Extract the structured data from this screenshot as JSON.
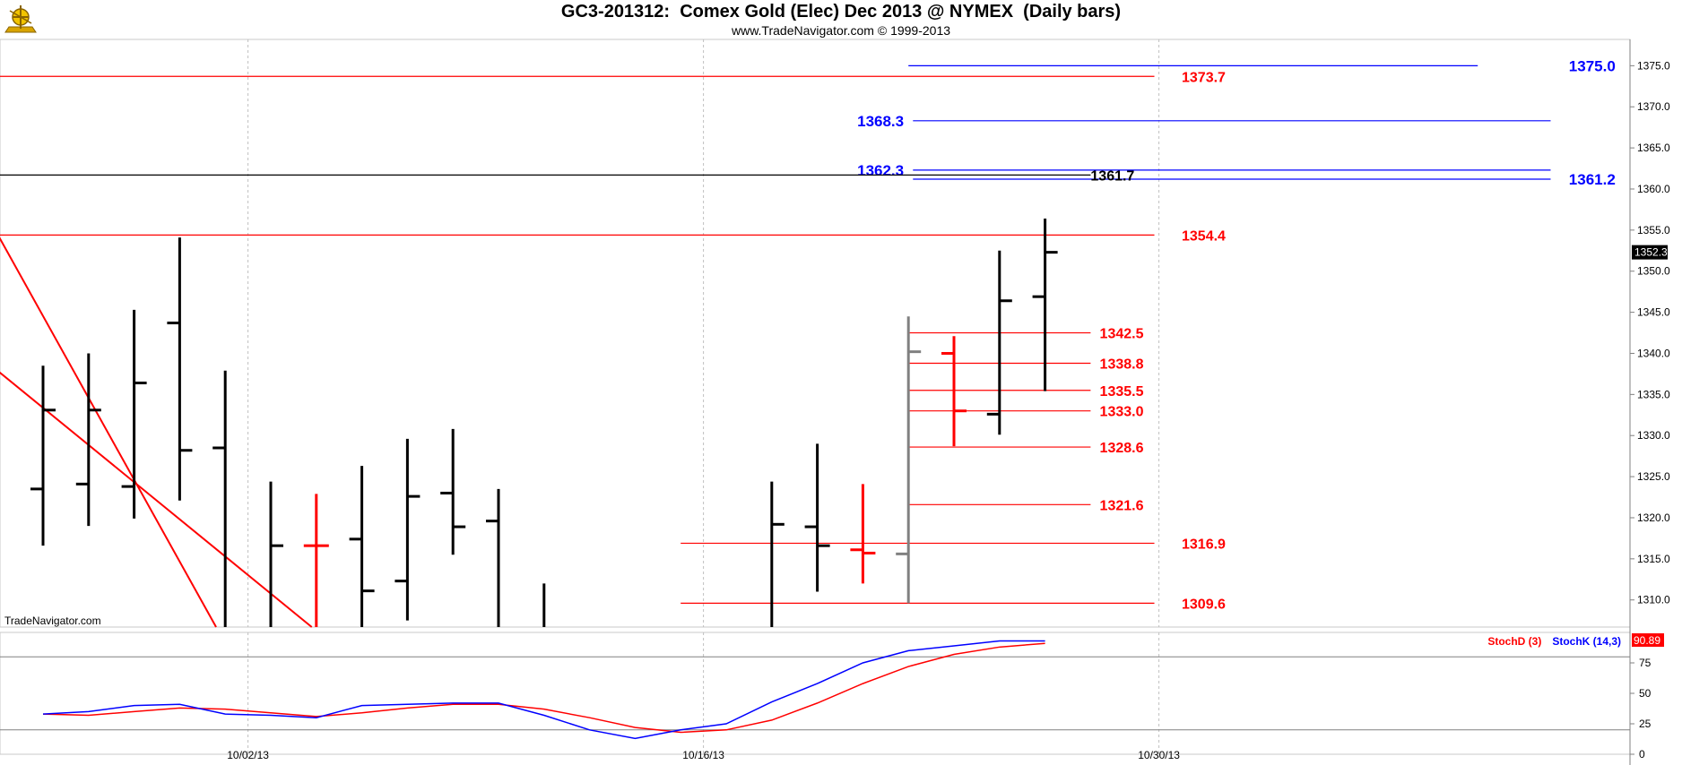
{
  "header": {
    "title": "GC3-201312:  Comex Gold (Elec) Dec 2013 @ NYMEX  (Daily bars)",
    "subtitle": "www.TradeNavigator.com © 1999-2013",
    "watermark": "TradeNavigator.com"
  },
  "colors": {
    "bar": "#000000",
    "bar_alt": "#808080",
    "bar_red": "#ff0000",
    "level_red": "#ff0000",
    "level_blue": "#0000ff",
    "stochD": "#ff0000",
    "stochK": "#0000ff"
  },
  "chart_data": {
    "type": "bar",
    "price_axis": {
      "ylim": [
        1306.7,
        1378.2
      ],
      "ticks": [
        "1310.0",
        "1315.0",
        "1320.0",
        "1325.0",
        "1330.0",
        "1335.0",
        "1340.0",
        "1345.0",
        "1350.0",
        "1355.0",
        "1360.0",
        "1365.0",
        "1370.0",
        "1375.0"
      ]
    },
    "last_price": "1352.3",
    "x_ticks": [
      {
        "i": 4.5,
        "label": "10/02/13"
      },
      {
        "i": 14.5,
        "label": "10/16/13"
      },
      {
        "i": 24.5,
        "label": "10/30/13"
      }
    ],
    "ohlc": [
      {
        "i": 0,
        "h": 1338.5,
        "l": 1316.6,
        "o": 1323.5,
        "c": 1333.1,
        "color": "black"
      },
      {
        "i": 1,
        "h": 1340.0,
        "l": 1319.0,
        "o": 1324.1,
        "c": 1333.1,
        "color": "black"
      },
      {
        "i": 2,
        "h": 1345.3,
        "l": 1319.9,
        "o": 1323.8,
        "c": 1336.4,
        "color": "black"
      },
      {
        "i": 3,
        "h": 1354.1,
        "l": 1322.1,
        "o": 1343.7,
        "c": 1328.2,
        "color": "black"
      },
      {
        "i": 4,
        "h": 1337.9,
        "l": 1306.7,
        "o": 1328.5,
        "c": null,
        "color": "black"
      },
      {
        "i": 5,
        "h": 1324.4,
        "l": 1306.7,
        "o": null,
        "c": 1316.6,
        "color": "black"
      },
      {
        "i": 6,
        "h": 1322.9,
        "l": 1306.7,
        "o": 1316.6,
        "c": 1316.6,
        "color": "red"
      },
      {
        "i": 7,
        "h": 1326.3,
        "l": 1306.7,
        "o": 1317.4,
        "c": 1311.1,
        "color": "black"
      },
      {
        "i": 8,
        "h": 1329.6,
        "l": 1307.5,
        "o": 1312.3,
        "c": 1322.6,
        "color": "black"
      },
      {
        "i": 9,
        "h": 1330.8,
        "l": 1315.5,
        "o": 1323.0,
        "c": 1318.9,
        "color": "black"
      },
      {
        "i": 10,
        "h": 1323.5,
        "l": 1306.7,
        "o": 1319.6,
        "c": null,
        "color": "black"
      },
      {
        "i": 11,
        "h": 1312.0,
        "l": 1306.7,
        "o": null,
        "c": null,
        "color": "black"
      },
      {
        "i": 16,
        "h": 1324.4,
        "l": 1306.7,
        "o": null,
        "c": 1319.2,
        "color": "black"
      },
      {
        "i": 17,
        "h": 1329.0,
        "l": 1311.0,
        "o": 1318.9,
        "c": 1316.6,
        "color": "black"
      },
      {
        "i": 18,
        "h": 1324.1,
        "l": 1312.0,
        "o": 1316.1,
        "c": 1315.7,
        "color": "red"
      },
      {
        "i": 19,
        "h": 1344.5,
        "l": 1309.6,
        "o": 1315.6,
        "c": 1340.2,
        "color": "gray"
      },
      {
        "i": 20,
        "h": 1342.1,
        "l": 1328.7,
        "o": 1340.0,
        "c": 1333.0,
        "color": "red"
      },
      {
        "i": 21,
        "h": 1352.5,
        "l": 1330.1,
        "o": 1332.6,
        "c": 1346.4,
        "color": "black"
      },
      {
        "i": 22,
        "h": 1356.4,
        "l": 1335.4,
        "o": 1346.9,
        "c": 1352.3,
        "color": "black"
      }
    ],
    "levels": [
      {
        "value": 1375.0,
        "label": "1375.0",
        "color": "blue",
        "x0": 19,
        "x1": 31.5,
        "label_at": 33.5,
        "anchor": "start",
        "size": 17
      },
      {
        "value": 1373.7,
        "label": "1373.7",
        "color": "red",
        "x0": -1,
        "x1": 24.4,
        "label_at": 25.0,
        "anchor": "start",
        "size": 16
      },
      {
        "value": 1368.3,
        "label": "1368.3",
        "color": "blue",
        "x0": 19.1,
        "x1": 33.1,
        "label_at": 18.9,
        "anchor": "end",
        "size": 17
      },
      {
        "value": 1362.3,
        "label": "1362.3",
        "color": "blue",
        "x0": 19.1,
        "x1": 33.1,
        "label_at": 18.9,
        "anchor": "end",
        "size": 17
      },
      {
        "value": 1361.2,
        "label": "1361.2",
        "color": "blue",
        "x0": 19.1,
        "x1": 33.1,
        "label_at": 33.5,
        "anchor": "start",
        "size": 17
      },
      {
        "value": 1361.7,
        "label": "1361.7",
        "color": "black",
        "x0": -1,
        "x1": 23.0,
        "label_at": 23.0,
        "anchor": "start",
        "size": 16
      },
      {
        "value": 1354.4,
        "label": "1354.4",
        "color": "red",
        "x0": -1,
        "x1": 24.4,
        "label_at": 25.0,
        "anchor": "start",
        "size": 16
      },
      {
        "value": 1342.5,
        "label": "1342.5",
        "color": "red",
        "x0": 19.0,
        "x1": 23.0,
        "label_at": 23.2,
        "anchor": "start",
        "size": 16
      },
      {
        "value": 1338.8,
        "label": "1338.8",
        "color": "red",
        "x0": 19.0,
        "x1": 23.0,
        "label_at": 23.2,
        "anchor": "start",
        "size": 16
      },
      {
        "value": 1335.5,
        "label": "1335.5",
        "color": "red",
        "x0": 19.0,
        "x1": 23.0,
        "label_at": 23.2,
        "anchor": "start",
        "size": 16
      },
      {
        "value": 1333.0,
        "label": "1333.0",
        "color": "red",
        "x0": 19.0,
        "x1": 23.0,
        "label_at": 23.2,
        "anchor": "start",
        "size": 16
      },
      {
        "value": 1328.6,
        "label": "1328.6",
        "color": "red",
        "x0": 19.0,
        "x1": 23.0,
        "label_at": 23.2,
        "anchor": "start",
        "size": 16
      },
      {
        "value": 1321.6,
        "label": "1321.6",
        "color": "red",
        "x0": 19.0,
        "x1": 23.0,
        "label_at": 23.2,
        "anchor": "start",
        "size": 16
      },
      {
        "value": 1316.9,
        "label": "1316.9",
        "color": "red",
        "x0": 14.0,
        "x1": 24.4,
        "label_at": 25.0,
        "anchor": "start",
        "size": 16
      },
      {
        "value": 1309.6,
        "label": "1309.6",
        "color": "red",
        "x0": 14.0,
        "x1": 24.4,
        "label_at": 25.0,
        "anchor": "start",
        "size": 16
      }
    ],
    "trendlines": [
      {
        "x0": -1,
        "y0": 1354.5,
        "x1": 3.8,
        "y1": 1306.7
      },
      {
        "x0": -1,
        "y0": 1337.9,
        "x1": 5.9,
        "y1": 1306.7
      }
    ],
    "stochastic": {
      "ylim": [
        0,
        100
      ],
      "ticks": [
        "0",
        "25",
        "50",
        "75"
      ],
      "levels": [
        20,
        80
      ],
      "last_value": "90.89",
      "legend": [
        {
          "name": "StochD (3)",
          "color": "red"
        },
        {
          "name": "StochK (14,3)",
          "color": "blue"
        }
      ],
      "K": [
        [
          0,
          33
        ],
        [
          1,
          35
        ],
        [
          2,
          40
        ],
        [
          3,
          41
        ],
        [
          4,
          33
        ],
        [
          5,
          32
        ],
        [
          6,
          30
        ],
        [
          7,
          40
        ],
        [
          8,
          41
        ],
        [
          9,
          42
        ],
        [
          10,
          42
        ],
        [
          11,
          32
        ],
        [
          12,
          20
        ],
        [
          13,
          13
        ],
        [
          14,
          20
        ],
        [
          15,
          25
        ],
        [
          16,
          43
        ],
        [
          17,
          58
        ],
        [
          18,
          75
        ],
        [
          19,
          85
        ],
        [
          20,
          89
        ],
        [
          21,
          93
        ],
        [
          22,
          93
        ]
      ],
      "D": [
        [
          0,
          33
        ],
        [
          1,
          32
        ],
        [
          2,
          35
        ],
        [
          3,
          38
        ],
        [
          4,
          37
        ],
        [
          5,
          34
        ],
        [
          6,
          31
        ],
        [
          7,
          34
        ],
        [
          8,
          38
        ],
        [
          9,
          41
        ],
        [
          10,
          41
        ],
        [
          11,
          37
        ],
        [
          12,
          30
        ],
        [
          13,
          22
        ],
        [
          14,
          18
        ],
        [
          15,
          20
        ],
        [
          16,
          28
        ],
        [
          17,
          42
        ],
        [
          18,
          58
        ],
        [
          19,
          72
        ],
        [
          20,
          82
        ],
        [
          21,
          88
        ],
        [
          22,
          91
        ]
      ]
    }
  }
}
